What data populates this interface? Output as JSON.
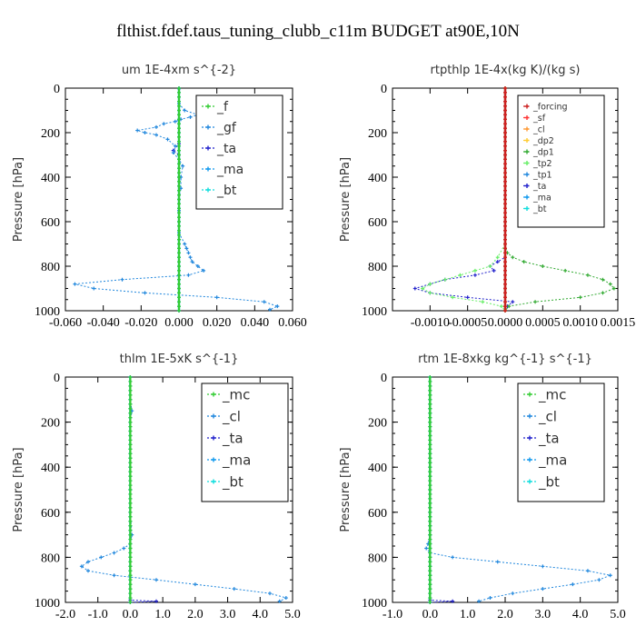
{
  "title": "flthist.fdef.taus_tuning_clubb_c11m  BUDGET at90E,10N",
  "chart_data": [
    {
      "type": "line",
      "title": "um   1E-4xm  s^{-2}",
      "xlabel": "",
      "ylabel": "Pressure [hPa]",
      "xlim": [
        -0.06,
        0.06
      ],
      "ylim": [
        1000,
        0
      ],
      "xticks": [
        "-0.060",
        "-0.040",
        "-0.020",
        "0.000",
        "0.020",
        "0.040",
        "0.060"
      ],
      "yticks": [
        "0",
        "200",
        "400",
        "600",
        "800",
        "1000"
      ],
      "legend": {
        "placement": "top-right",
        "font_size": "large"
      },
      "series": [
        {
          "name": "_f",
          "color": "#33cc33",
          "pressure": [
            0,
            1000
          ],
          "values": [
            0.0,
            0.0
          ]
        },
        {
          "name": "_gf",
          "color": "#2288dd",
          "pressure": [
            3,
            40,
            70,
            100,
            120,
            130,
            140,
            150,
            160,
            175,
            190,
            200,
            210,
            230,
            260,
            290,
            320,
            350,
            400,
            450,
            500,
            550,
            600,
            650,
            700,
            720,
            740,
            760,
            780,
            800,
            820,
            840,
            860,
            880,
            900,
            920,
            940,
            960,
            980,
            995
          ],
          "values": [
            0.0,
            0.0,
            0.0,
            0.003,
            0.01,
            0.006,
            0.001,
            -0.002,
            -0.008,
            -0.012,
            -0.022,
            -0.018,
            -0.012,
            -0.006,
            -0.002,
            -0.003,
            0.0,
            0.002,
            0.001,
            0.001,
            0.0,
            0.0,
            0.0,
            0.0,
            0.003,
            0.004,
            0.005,
            0.006,
            0.007,
            0.01,
            0.013,
            0.005,
            -0.03,
            -0.055,
            -0.045,
            -0.018,
            0.02,
            0.045,
            0.052,
            0.048
          ]
        },
        {
          "name": "_ta",
          "color": "#2222cc",
          "pressure": [
            0,
            250,
            280,
            300,
            1000
          ],
          "values": [
            0.0,
            0.0,
            -0.003,
            0.0,
            0.0
          ]
        },
        {
          "name": "_ma",
          "color": "#1199ee",
          "pressure": [
            0,
            1000
          ],
          "values": [
            0.0,
            0.0
          ]
        },
        {
          "name": "_bt",
          "color": "#11dddd",
          "pressure": [
            0,
            1000
          ],
          "values": [
            0.0,
            0.0
          ]
        }
      ]
    },
    {
      "type": "line",
      "title": "rtpthlp  1E-4x(kg K)/(kg s)",
      "xlabel": "",
      "ylabel": "Pressure [hPa]",
      "xlim": [
        -0.0015,
        0.0015
      ],
      "ylim": [
        1000,
        0
      ],
      "xticks": [
        "-0.0010",
        "-0.0005",
        "0.0000",
        "0.0005",
        "0.0010",
        "0.0015"
      ],
      "yticks": [
        "0",
        "200",
        "400",
        "600",
        "800",
        "1000"
      ],
      "legend": {
        "placement": "top-right",
        "font_size": "small"
      },
      "series": [
        {
          "name": "_forcing",
          "color": "#cc2222",
          "pressure": [
            0,
            1000
          ],
          "values": [
            0.0,
            0.0
          ]
        },
        {
          "name": "_sf",
          "color": "#ff3333",
          "pressure": [
            0,
            1000
          ],
          "values": [
            0.0,
            0.0
          ]
        },
        {
          "name": "_cl",
          "color": "#ff9933",
          "pressure": [
            0,
            1000
          ],
          "values": [
            0.0,
            0.0
          ]
        },
        {
          "name": "_dp2",
          "color": "#ffcc33",
          "pressure": [
            0,
            1000
          ],
          "values": [
            0.0,
            0.0
          ]
        },
        {
          "name": "_dp1",
          "color": "#33aa33",
          "pressure": [
            0,
            700,
            740,
            760,
            780,
            800,
            820,
            840,
            860,
            880,
            900,
            920,
            940,
            960,
            980,
            1000
          ],
          "values": [
            0.0,
            0.0,
            3e-05,
            0.0001,
            0.00025,
            0.0005,
            0.0008,
            0.0011,
            0.0013,
            0.0014,
            0.00145,
            0.0013,
            0.001,
            0.0004,
            5e-05,
            0.0
          ]
        },
        {
          "name": "_tp2",
          "color": "#66ee66",
          "pressure": [
            0,
            700,
            760,
            800,
            820,
            840,
            860,
            880,
            900,
            920,
            940,
            960,
            980,
            1000
          ],
          "values": [
            0.0,
            0.0,
            -0.0001,
            -0.0002,
            -0.0004,
            -0.0006,
            -0.0008,
            -0.001,
            -0.0011,
            -0.001,
            -0.0007,
            -0.0003,
            -5e-05,
            0.0
          ]
        },
        {
          "name": "_tp1",
          "color": "#2288dd",
          "pressure": [
            0,
            1000
          ],
          "values": [
            0.0,
            0.0
          ]
        },
        {
          "name": "_ta",
          "color": "#2222cc",
          "pressure": [
            0,
            760,
            780,
            800,
            820,
            840,
            860,
            880,
            900,
            920,
            940,
            960,
            980,
            1000
          ],
          "values": [
            0.0,
            0.0,
            -0.0001,
            -0.0002,
            -0.00015,
            -0.0004,
            -0.0008,
            -0.001,
            -0.0012,
            -0.001,
            -0.0005,
            0.0001,
            3e-05,
            0.0
          ]
        },
        {
          "name": "_ma",
          "color": "#1199ee",
          "pressure": [
            0,
            1000
          ],
          "values": [
            0.0,
            0.0
          ]
        },
        {
          "name": "_bt",
          "color": "#11dddd",
          "pressure": [
            0,
            1000
          ],
          "values": [
            0.0,
            0.0
          ]
        }
      ]
    },
    {
      "type": "line",
      "title": "thlm  1E-5xK  s^{-1}",
      "xlabel": "",
      "ylabel": "Pressure [hPa]",
      "xlim": [
        -2.0,
        5.0
      ],
      "ylim": [
        1000,
        0
      ],
      "xticks": [
        "-2.0",
        "-1.0",
        "0.0",
        "1.0",
        "2.0",
        "3.0",
        "4.0",
        "5.0"
      ],
      "yticks": [
        "0",
        "200",
        "400",
        "600",
        "800",
        "1000"
      ],
      "legend": {
        "placement": "top-right",
        "font_size": "large"
      },
      "series": [
        {
          "name": "_mc",
          "color": "#33cc33",
          "pressure": [
            0,
            1000
          ],
          "values": [
            0.0,
            0.0
          ]
        },
        {
          "name": "_cl",
          "color": "#2288dd",
          "pressure": [
            0,
            100,
            150,
            200,
            300,
            400,
            500,
            600,
            700,
            740,
            760,
            780,
            800,
            820,
            840,
            860,
            880,
            900,
            920,
            940,
            960,
            980,
            995
          ],
          "values": [
            0.0,
            0.0,
            0.05,
            0.0,
            0.0,
            0.0,
            0.0,
            0.0,
            0.05,
            0.0,
            -0.2,
            -0.5,
            -0.9,
            -1.3,
            -1.5,
            -1.3,
            -0.5,
            0.8,
            2.0,
            3.2,
            4.3,
            4.8,
            4.6
          ]
        },
        {
          "name": "_ta",
          "color": "#2222cc",
          "pressure": [
            0,
            990,
            995,
            1000
          ],
          "values": [
            0.0,
            0.0,
            0.8,
            0.0
          ]
        },
        {
          "name": "_ma",
          "color": "#1199ee",
          "pressure": [
            0,
            1000
          ],
          "values": [
            0.0,
            0.0
          ]
        },
        {
          "name": "_bt",
          "color": "#11dddd",
          "pressure": [
            0,
            1000
          ],
          "values": [
            0.0,
            0.0
          ]
        }
      ]
    },
    {
      "type": "line",
      "title": "rtm  1E-8xkg kg^{-1} s^{-1}",
      "xlabel": "",
      "ylabel": "Pressure [hPa]",
      "xlim": [
        -1.0,
        5.0
      ],
      "ylim": [
        1000,
        0
      ],
      "xticks": [
        "-1.0",
        "0.0",
        "1.0",
        "2.0",
        "3.0",
        "4.0",
        "5.0"
      ],
      "yticks": [
        "0",
        "200",
        "400",
        "600",
        "800",
        "1000"
      ],
      "legend": {
        "placement": "top-right",
        "font_size": "large"
      },
      "series": [
        {
          "name": "_mc",
          "color": "#33cc33",
          "pressure": [
            0,
            1000
          ],
          "values": [
            0.0,
            0.0
          ]
        },
        {
          "name": "_cl",
          "color": "#2288dd",
          "pressure": [
            0,
            600,
            700,
            740,
            760,
            780,
            800,
            820,
            840,
            860,
            880,
            900,
            920,
            940,
            960,
            980,
            995
          ],
          "values": [
            0.0,
            0.0,
            0.0,
            -0.05,
            -0.1,
            0.0,
            0.6,
            1.8,
            3.0,
            4.2,
            4.8,
            4.5,
            3.8,
            3.0,
            2.2,
            1.6,
            1.3
          ]
        },
        {
          "name": "_ta",
          "color": "#2222cc",
          "pressure": [
            0,
            990,
            995,
            1000
          ],
          "values": [
            0.0,
            0.0,
            0.6,
            0.0
          ]
        },
        {
          "name": "_ma",
          "color": "#1199ee",
          "pressure": [
            0,
            1000
          ],
          "values": [
            0.0,
            0.0
          ]
        },
        {
          "name": "_bt",
          "color": "#11dddd",
          "pressure": [
            0,
            1000
          ],
          "values": [
            0.0,
            0.0
          ]
        }
      ]
    }
  ]
}
